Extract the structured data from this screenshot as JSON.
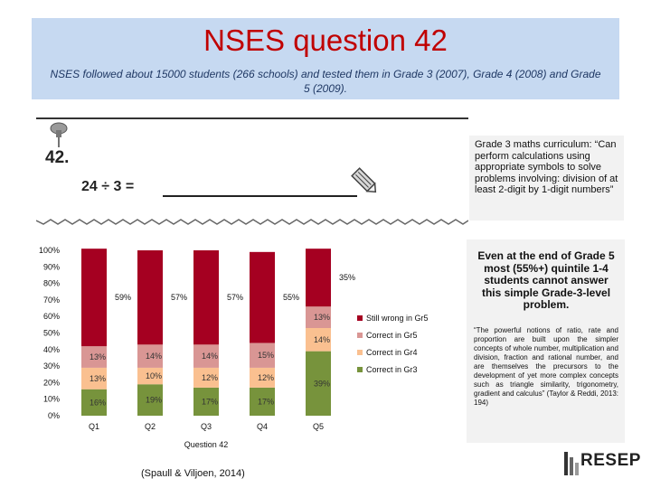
{
  "header": {
    "title": "NSES question 42",
    "subtitle": "NSES followed about 15000 students (266 schools) and tested them in Grade 3 (2007), Grade 4 (2008) and Grade 5 (2009)."
  },
  "question": {
    "number": "42.",
    "expression": "24  ÷  3  ="
  },
  "curriculum": {
    "text": "Grade 3 maths curriculum: “Can perform calculations using appropriate symbols to solve problems involving: division of at least 2-digit by 1-digit numbers”"
  },
  "chart_data": {
    "type": "bar",
    "stacked": true,
    "categories": [
      "Q1",
      "Q2",
      "Q3",
      "Q4",
      "Q5"
    ],
    "xlabel": "Question 42",
    "ylabel": "",
    "ylim": [
      0,
      100
    ],
    "y_ticks": [
      "0%",
      "10%",
      "20%",
      "30%",
      "40%",
      "50%",
      "60%",
      "70%",
      "80%",
      "90%",
      "100%"
    ],
    "series": [
      {
        "name": "Correct in Gr3",
        "color": "#77933c",
        "values": [
          16,
          19,
          17,
          17,
          39
        ],
        "labels": [
          "16%",
          "19%",
          "17%",
          "17%",
          "39%"
        ]
      },
      {
        "name": "Correct in Gr4",
        "color": "#fac090",
        "values": [
          13,
          10,
          12,
          12,
          14
        ],
        "labels": [
          "13%",
          "10%",
          "12%",
          "12%",
          "14%"
        ]
      },
      {
        "name": "Correct in Gr5",
        "color": "#d99694",
        "values": [
          13,
          14,
          14,
          15,
          13
        ],
        "labels": [
          "13%",
          "14%",
          "14%",
          "15%",
          "13%"
        ]
      },
      {
        "name": "Still wrong in Gr5",
        "color": "#a50021",
        "values": [
          59,
          57,
          57,
          55,
          35
        ],
        "labels": [
          "59%",
          "57%",
          "57%",
          "55%",
          "35%"
        ]
      }
    ],
    "legend_order": [
      "Still wrong in Gr5",
      "Correct in Gr5",
      "Correct in Gr4",
      "Correct in Gr3"
    ],
    "legend_position": "right",
    "grid": false
  },
  "citation": "(Spaull & Viljoen, 2014)",
  "sidebar": {
    "bold_text": "Even at the end of Grade 5 most (55%+) quintile 1-4 students cannot answer this simple Grade-3-level problem.",
    "quote": "“The powerful notions of ratio, rate and proportion are built upon the simpler concepts of whole number, multiplication and division, fraction and rational number, and are themselves the precursors to the development of yet more complex concepts such as triangle similarity, trigonometry, gradient and calculus” (Taylor & Reddi, 2013: 194)"
  },
  "logo": {
    "text": "RESEP"
  },
  "colors": {
    "title": "#c00000",
    "header_bg": "#c6d9f1",
    "panel_bg": "#f2f2f2"
  }
}
